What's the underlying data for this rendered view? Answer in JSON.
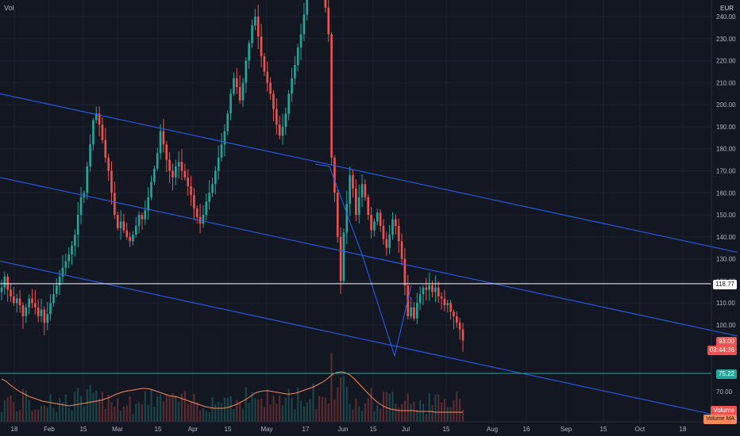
{
  "header": {
    "left_label": "Vol",
    "currency": "EUR"
  },
  "colors": {
    "background": "#131722",
    "grid": "#1e2230",
    "up": "#26a69a",
    "down": "#ef5350",
    "channel": "#2962ff",
    "horizontal": "#ffffff",
    "volume_ma": "#f7895f",
    "level_green": "#26a69a"
  },
  "chart_data": {
    "type": "candlestick",
    "price_axis": {
      "ticks": [
        "240.00",
        "230.00",
        "220.00",
        "210.00",
        "200.00",
        "190.00",
        "180.00",
        "170.00",
        "160.00",
        "150.00",
        "140.00",
        "130.00",
        "120.00",
        "110.00",
        "100.00"
      ],
      "range": [
        86,
        245
      ]
    },
    "volume_axis": {
      "ticks": [
        "70.00",
        "60.00"
      ]
    },
    "time_axis": [
      "18",
      "Feb",
      "15",
      "Mar",
      "15",
      "Apr",
      "15",
      "May",
      "17",
      "Jun",
      "15",
      "Jul",
      "15",
      "Aug",
      "16",
      "Sep",
      "15",
      "Oct",
      "18"
    ],
    "price_tags": {
      "horizontal_level": "118.77",
      "last_price": "93.00",
      "countdown": "03:44:36",
      "volume_level": "75.22",
      "volume_label": "Volume",
      "volume_ma_label": "Volume MA"
    },
    "closes": [
      117,
      122,
      116,
      113,
      110,
      112,
      109,
      104,
      108,
      112,
      110,
      108,
      104,
      107,
      101,
      105,
      110,
      114,
      118,
      122,
      126,
      129,
      132,
      136,
      141,
      150,
      158,
      160,
      172,
      182,
      193,
      196,
      191,
      184,
      176,
      170,
      160,
      150,
      144,
      147,
      143,
      140,
      138,
      141,
      145,
      150,
      148,
      152,
      158,
      165,
      171,
      178,
      188,
      182,
      175,
      170,
      167,
      172,
      174,
      170,
      167,
      163,
      159,
      153,
      149,
      146,
      150,
      156,
      160,
      164,
      170,
      176,
      182,
      188,
      196,
      205,
      212,
      208,
      202,
      210,
      220,
      228,
      236,
      240,
      231,
      222,
      215,
      210,
      205,
      198,
      191,
      186,
      190,
      196,
      205,
      212,
      218,
      226,
      232,
      241,
      250,
      260,
      275,
      268,
      258,
      250,
      244,
      232,
      176,
      160,
      140,
      120,
      142,
      155,
      168,
      162,
      150,
      158,
      164,
      158,
      150,
      143,
      147,
      151,
      145,
      139,
      135,
      141,
      148,
      145,
      138,
      130,
      118,
      104,
      108,
      103,
      110,
      114,
      117,
      116,
      118,
      115,
      117,
      113,
      112,
      109,
      110,
      106,
      104,
      101,
      98,
      93
    ],
    "channel_upper": {
      "start": [
        0,
        205
      ],
      "end": [
        929,
        133
      ]
    },
    "channel_middle": {
      "start": [
        0,
        167
      ],
      "end": [
        929,
        95
      ]
    },
    "channel_lower": {
      "start": [
        0,
        129
      ],
      "end": [
        929,
        57
      ]
    }
  }
}
